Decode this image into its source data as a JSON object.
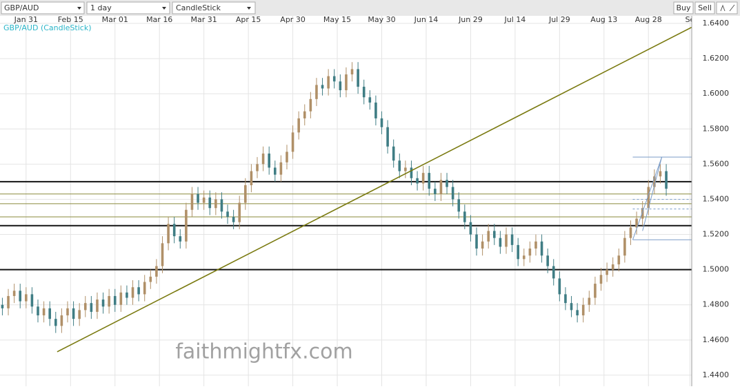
{
  "toolbar": {
    "symbol": "GBP/AUD",
    "interval": "1 day",
    "chart_type": "CandleStick",
    "buy": "Buy",
    "sell": "Sell"
  },
  "chart_data": {
    "type": "candlestick",
    "label": "GBP/AUD (CandleStick)",
    "watermark": "faithmightfx.com",
    "up_color": "#b09068",
    "down_color": "#3f7d84",
    "grid": true,
    "xlim": [
      -8.8,
      224.6
    ],
    "ylim": [
      1.4337,
      1.6443
    ],
    "xticks": [
      {
        "value": 0,
        "label": "Jan 31"
      },
      {
        "value": 15,
        "label": "Feb 15"
      },
      {
        "value": 30,
        "label": "Mar 01"
      },
      {
        "value": 45,
        "label": "Mar 16"
      },
      {
        "value": 60,
        "label": "Mar 31"
      },
      {
        "value": 75,
        "label": "Apr 15"
      },
      {
        "value": 90,
        "label": "Apr 30"
      },
      {
        "value": 105,
        "label": "May 15"
      },
      {
        "value": 120,
        "label": "May 30"
      },
      {
        "value": 135,
        "label": "Jun 14"
      },
      {
        "value": 150,
        "label": "Jun 29"
      },
      {
        "value": 165,
        "label": "Jul 14"
      },
      {
        "value": 180,
        "label": "Jul 29"
      },
      {
        "value": 195,
        "label": "Aug 13"
      },
      {
        "value": 210,
        "label": "Aug 28"
      },
      {
        "value": 224,
        "label": "Se"
      }
    ],
    "yticks": [
      {
        "value": 1.44,
        "label": "1.4400"
      },
      {
        "value": 1.46,
        "label": "1.4600"
      },
      {
        "value": 1.48,
        "label": "1.4800"
      },
      {
        "value": 1.5,
        "label": "1.5000"
      },
      {
        "value": 1.52,
        "label": "1.5200"
      },
      {
        "value": 1.54,
        "label": "1.5400"
      },
      {
        "value": 1.56,
        "label": "1.5600"
      },
      {
        "value": 1.58,
        "label": "1.5800"
      },
      {
        "value": 1.6,
        "label": "1.6000"
      },
      {
        "value": 1.62,
        "label": "1.6200"
      },
      {
        "value": 1.64,
        "label": "1.6400"
      }
    ],
    "x": [
      -8,
      -6,
      -4,
      -2,
      0,
      2,
      4,
      6,
      8,
      10,
      12,
      14,
      16,
      18,
      20,
      22,
      24,
      26,
      28,
      30,
      32,
      34,
      36,
      38,
      40,
      42,
      44,
      46,
      48,
      50,
      52,
      54,
      56,
      58,
      60,
      62,
      64,
      66,
      68,
      70,
      72,
      74,
      76,
      78,
      80,
      82,
      84,
      86,
      88,
      90,
      92,
      94,
      96,
      98,
      100,
      102,
      104,
      106,
      108,
      110,
      112,
      114,
      116,
      118,
      120,
      122,
      124,
      126,
      128,
      130,
      132,
      134,
      136,
      138,
      140,
      142,
      144,
      146,
      148,
      150,
      152,
      154,
      156,
      158,
      160,
      162,
      164,
      166,
      168,
      170,
      172,
      174,
      176,
      178,
      180,
      182,
      184,
      186,
      188,
      190,
      192,
      194,
      196,
      198,
      200,
      202,
      204,
      206,
      208,
      210,
      212,
      214,
      216
    ],
    "open": [
      1.48,
      1.478,
      1.485,
      1.488,
      1.482,
      1.486,
      1.479,
      1.474,
      1.478,
      1.472,
      1.468,
      1.474,
      1.478,
      1.472,
      1.477,
      1.481,
      1.476,
      1.483,
      1.479,
      1.485,
      1.48,
      1.487,
      1.484,
      1.49,
      1.486,
      1.493,
      1.496,
      1.502,
      1.515,
      1.526,
      1.519,
      1.516,
      1.534,
      1.543,
      1.538,
      1.541,
      1.535,
      1.54,
      1.533,
      1.53,
      1.527,
      1.538,
      1.548,
      1.556,
      1.56,
      1.566,
      1.558,
      1.554,
      1.561,
      1.567,
      1.578,
      1.586,
      1.59,
      1.597,
      1.605,
      1.603,
      1.61,
      1.607,
      1.602,
      1.611,
      1.614,
      1.604,
      1.598,
      1.595,
      1.586,
      1.581,
      1.57,
      1.562,
      1.556,
      1.558,
      1.552,
      1.549,
      1.555,
      1.546,
      1.543,
      1.551,
      1.547,
      1.54,
      1.533,
      1.527,
      1.52,
      1.512,
      1.516,
      1.522,
      1.518,
      1.513,
      1.52,
      1.514,
      1.506,
      1.508,
      1.512,
      1.516,
      1.508,
      1.502,
      1.495,
      1.486,
      1.481,
      1.477,
      1.474,
      1.48,
      1.484,
      1.492,
      1.497,
      1.5,
      1.503,
      1.508,
      1.518,
      1.524,
      1.529,
      1.535,
      1.547,
      1.553,
      1.556
    ],
    "high": [
      1.484,
      1.489,
      1.492,
      1.492,
      1.49,
      1.49,
      1.483,
      1.482,
      1.482,
      1.476,
      1.478,
      1.482,
      1.482,
      1.481,
      1.485,
      1.485,
      1.487,
      1.487,
      1.489,
      1.489,
      1.491,
      1.491,
      1.494,
      1.494,
      1.497,
      1.5,
      1.506,
      1.519,
      1.53,
      1.53,
      1.523,
      1.538,
      1.547,
      1.547,
      1.545,
      1.545,
      1.544,
      1.544,
      1.537,
      1.534,
      1.542,
      1.552,
      1.56,
      1.564,
      1.57,
      1.57,
      1.562,
      1.565,
      1.571,
      1.582,
      1.59,
      1.594,
      1.601,
      1.609,
      1.609,
      1.614,
      1.614,
      1.611,
      1.615,
      1.618,
      1.618,
      1.608,
      1.602,
      1.599,
      1.59,
      1.585,
      1.574,
      1.566,
      1.562,
      1.562,
      1.556,
      1.559,
      1.559,
      1.55,
      1.555,
      1.555,
      1.551,
      1.544,
      1.537,
      1.531,
      1.524,
      1.52,
      1.526,
      1.526,
      1.522,
      1.524,
      1.524,
      1.518,
      1.512,
      1.516,
      1.52,
      1.52,
      1.512,
      1.506,
      1.499,
      1.49,
      1.485,
      1.481,
      1.484,
      1.488,
      1.496,
      1.501,
      1.504,
      1.507,
      1.512,
      1.522,
      1.528,
      1.533,
      1.539,
      1.551,
      1.557,
      1.56,
      1.56
    ],
    "low": [
      1.474,
      1.474,
      1.481,
      1.478,
      1.478,
      1.475,
      1.47,
      1.47,
      1.468,
      1.464,
      1.464,
      1.47,
      1.468,
      1.468,
      1.473,
      1.472,
      1.472,
      1.475,
      1.475,
      1.476,
      1.476,
      1.48,
      1.48,
      1.482,
      1.482,
      1.489,
      1.492,
      1.498,
      1.511,
      1.515,
      1.512,
      1.512,
      1.53,
      1.534,
      1.534,
      1.531,
      1.531,
      1.529,
      1.526,
      1.523,
      1.523,
      1.534,
      1.544,
      1.552,
      1.556,
      1.554,
      1.55,
      1.55,
      1.557,
      1.563,
      1.574,
      1.582,
      1.586,
      1.593,
      1.599,
      1.599,
      1.603,
      1.598,
      1.598,
      1.607,
      1.6,
      1.594,
      1.591,
      1.582,
      1.577,
      1.566,
      1.558,
      1.552,
      1.552,
      1.548,
      1.545,
      1.545,
      1.542,
      1.539,
      1.539,
      1.543,
      1.536,
      1.529,
      1.523,
      1.516,
      1.508,
      1.508,
      1.512,
      1.514,
      1.509,
      1.509,
      1.51,
      1.502,
      1.502,
      1.504,
      1.508,
      1.504,
      1.498,
      1.491,
      1.482,
      1.477,
      1.473,
      1.47,
      1.47,
      1.476,
      1.48,
      1.488,
      1.493,
      1.496,
      1.499,
      1.504,
      1.514,
      1.52,
      1.525,
      1.531,
      1.543,
      1.549,
      1.542
    ],
    "close": [
      1.478,
      1.485,
      1.488,
      1.482,
      1.486,
      1.479,
      1.474,
      1.478,
      1.472,
      1.468,
      1.474,
      1.478,
      1.472,
      1.477,
      1.481,
      1.476,
      1.483,
      1.479,
      1.485,
      1.48,
      1.487,
      1.484,
      1.49,
      1.486,
      1.493,
      1.496,
      1.502,
      1.515,
      1.526,
      1.519,
      1.516,
      1.534,
      1.543,
      1.538,
      1.541,
      1.535,
      1.54,
      1.533,
      1.53,
      1.527,
      1.538,
      1.548,
      1.556,
      1.56,
      1.566,
      1.558,
      1.554,
      1.561,
      1.567,
      1.578,
      1.586,
      1.59,
      1.597,
      1.605,
      1.603,
      1.61,
      1.607,
      1.602,
      1.611,
      1.614,
      1.604,
      1.598,
      1.595,
      1.586,
      1.581,
      1.57,
      1.562,
      1.556,
      1.558,
      1.552,
      1.549,
      1.555,
      1.546,
      1.543,
      1.551,
      1.547,
      1.54,
      1.533,
      1.527,
      1.52,
      1.512,
      1.516,
      1.522,
      1.518,
      1.513,
      1.52,
      1.514,
      1.506,
      1.508,
      1.512,
      1.516,
      1.508,
      1.502,
      1.495,
      1.486,
      1.481,
      1.477,
      1.474,
      1.48,
      1.484,
      1.492,
      1.497,
      1.5,
      1.503,
      1.508,
      1.518,
      1.524,
      1.529,
      1.535,
      1.547,
      1.553,
      1.556,
      1.546
    ],
    "levels": [
      {
        "y": 1.55,
        "color": "#111111",
        "width": 2
      },
      {
        "y": 1.525,
        "color": "#111111",
        "width": 2
      },
      {
        "y": 1.5,
        "color": "#111111",
        "width": 2
      },
      {
        "y": 1.543,
        "color": "#8a8a3a",
        "width": 1
      },
      {
        "y": 1.5375,
        "color": "#8a8a3a",
        "width": 1
      },
      {
        "y": 1.53,
        "color": "#8a8a3a",
        "width": 1
      }
    ],
    "lines": [
      {
        "x": [
          10.5,
          224.6
        ],
        "y": [
          1.4533,
          1.6378
        ],
        "color": "#7a7a10",
        "width": 1.6
      },
      {
        "x": [
          204.7,
          224.6
        ],
        "y": [
          1.564,
          1.564
        ],
        "color": "#7a9cc8",
        "width": 1
      },
      {
        "x": [
          204.7,
          224.6
        ],
        "y": [
          1.517,
          1.517
        ],
        "color": "#7a9cc8",
        "width": 1
      },
      {
        "x": [
          204.7,
          224.6
        ],
        "y": [
          1.54,
          1.54
        ],
        "color": "#7a9cc8",
        "width": 1,
        "dash": true
      },
      {
        "x": [
          204.7,
          224.6
        ],
        "y": [
          1.5345,
          1.5345
        ],
        "color": "#7a9cc8",
        "width": 1,
        "dash": true
      },
      {
        "x": [
          204.7,
          214.5
        ],
        "y": [
          1.517,
          1.564
        ],
        "color": "#7a9cc8",
        "width": 1
      },
      {
        "x": [
          208,
          214.5
        ],
        "y": [
          1.522,
          1.564
        ],
        "color": "#7a9cc8",
        "width": 1
      }
    ]
  }
}
